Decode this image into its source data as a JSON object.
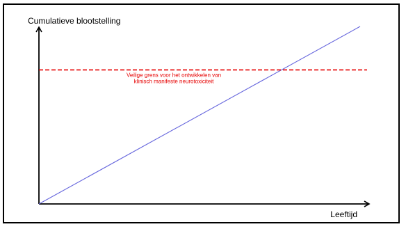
{
  "chart_data": {
    "type": "line",
    "title": "",
    "xlabel": "Leeftijd",
    "ylabel": "Cumulatieve blootstelling",
    "xlim": [
      0,
      1
    ],
    "ylim": [
      0,
      1
    ],
    "grid": false,
    "legend": "none",
    "series": [
      {
        "color": "#6666dd",
        "x": [
          0,
          1
        ],
        "y": [
          0,
          1
        ]
      }
    ],
    "threshold": {
      "y": 0.755,
      "style": "dashed",
      "color": "#e60000",
      "label_lines": [
        "Veilige grens voor het ontwikkelen van",
        "klinisch manifeste neurotoxiciteit"
      ]
    }
  }
}
